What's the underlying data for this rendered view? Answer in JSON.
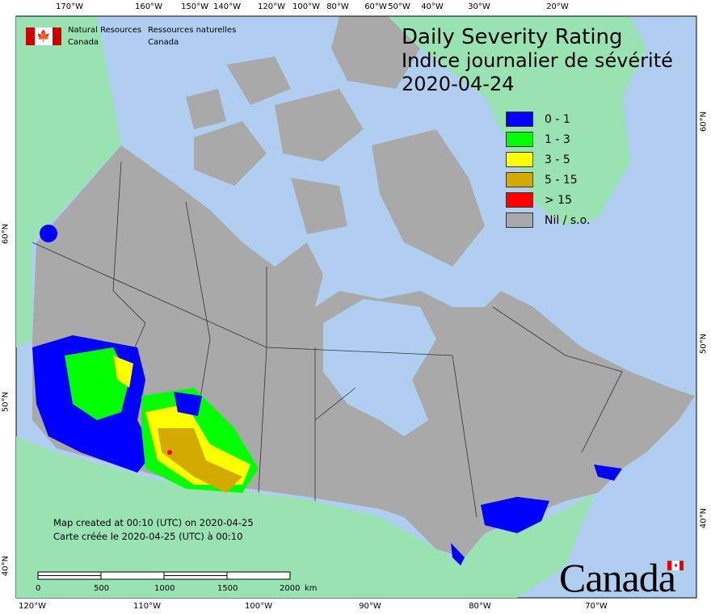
{
  "header": {
    "nrcan_en": [
      "Natural Resources",
      "Canada"
    ],
    "nrcan_fr": [
      "Ressources naturelles",
      "Canada"
    ]
  },
  "title": {
    "en": "Daily Severity Rating",
    "fr": "Indice journalier de sévérité",
    "date": "2020-04-24"
  },
  "legend": [
    {
      "label": "0 - 1",
      "color": "#0000ff"
    },
    {
      "label": "1 - 3",
      "color": "#00ff00"
    },
    {
      "label": "3 - 5",
      "color": "#ffff00"
    },
    {
      "label": "5 - 15",
      "color": "#d4aa00"
    },
    {
      "label": "> 15",
      "color": "#ff0000"
    },
    {
      "label": "Nil / s.o.",
      "color": "#a9a9a9"
    }
  ],
  "created": {
    "en": "Map created at 00:10 (UTC) on 2020-04-25",
    "fr": "Carte créée le 2020-04-25 (UTC) à 00:10"
  },
  "scale_bar": {
    "ticks": [
      "0",
      "500",
      "1000",
      "1500",
      "2000"
    ],
    "unit": "km"
  },
  "graticule": {
    "top": [
      "170°W",
      "160°W",
      "150°W",
      "140°W",
      "120°W",
      "100°W",
      "80°W",
      "60°W",
      "50°W",
      "40°W",
      "30°W",
      "20°W"
    ],
    "bottom": [
      "120°W",
      "110°W",
      "100°W",
      "90°W",
      "80°W",
      "70°W"
    ],
    "left": [
      "60°N",
      "50°N",
      "40°N"
    ],
    "right": [
      "60°N",
      "50°N",
      "40°N"
    ]
  },
  "wordmark": "Canada",
  "colors": {
    "ocean": "#b0cff0",
    "canada": "#a9a9a9",
    "other_land": "#99e3b2"
  }
}
